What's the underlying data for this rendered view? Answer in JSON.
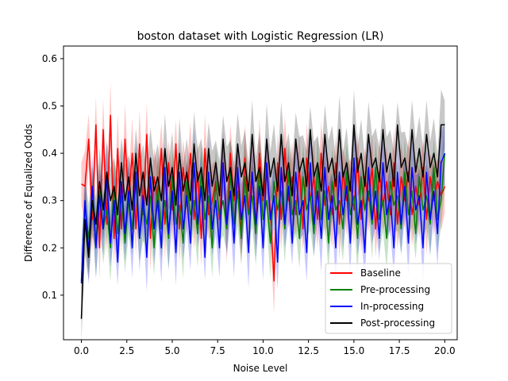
{
  "chart_data": {
    "type": "line",
    "title": "boston dataset with Logistic Regression (LR)",
    "xlabel": "Noise Level",
    "ylabel": "Difference of Equalized Odds",
    "xlim": [
      -0.985,
      20.685
    ],
    "ylim": [
      0.0058,
      0.6267
    ],
    "xticks": [
      0.0,
      2.5,
      5.0,
      7.5,
      10.0,
      12.5,
      15.0,
      17.5,
      20.0
    ],
    "xtick_labels": [
      "0.0",
      "2.5",
      "5.0",
      "7.5",
      "10.0",
      "12.5",
      "15.0",
      "17.5",
      "20.0"
    ],
    "yticks": [
      0.1,
      0.2,
      0.3,
      0.4,
      0.5,
      0.6
    ],
    "ytick_labels": [
      "0.1",
      "0.2",
      "0.3",
      "0.4",
      "0.5",
      "0.6"
    ],
    "x": [
      0.0,
      0.2,
      0.4,
      0.6,
      0.8,
      1.0,
      1.2,
      1.4,
      1.6,
      1.8,
      2.0,
      2.2,
      2.4,
      2.6,
      2.8,
      3.0,
      3.2,
      3.4,
      3.6,
      3.8,
      4.0,
      4.2,
      4.4,
      4.6,
      4.8,
      5.0,
      5.2,
      5.4,
      5.6,
      5.8,
      6.0,
      6.2,
      6.4,
      6.6,
      6.8,
      7.0,
      7.2,
      7.4,
      7.6,
      7.8,
      8.0,
      8.2,
      8.4,
      8.6,
      8.8,
      9.0,
      9.2,
      9.4,
      9.6,
      9.8,
      10.0,
      10.2,
      10.4,
      10.6,
      10.8,
      11.0,
      11.2,
      11.4,
      11.6,
      11.8,
      12.0,
      12.2,
      12.4,
      12.6,
      12.8,
      13.0,
      13.2,
      13.4,
      13.6,
      13.8,
      14.0,
      14.2,
      14.4,
      14.6,
      14.8,
      15.0,
      15.2,
      15.4,
      15.6,
      15.8,
      16.0,
      16.2,
      16.4,
      16.6,
      16.8,
      17.0,
      17.2,
      17.4,
      17.6,
      17.8,
      18.0,
      18.2,
      18.4,
      18.6,
      18.8,
      19.0,
      19.2,
      19.4,
      19.6,
      19.8,
      20.0
    ],
    "series": [
      {
        "name": "Baseline",
        "color": "#ff0000",
        "values": [
          0.335,
          0.33,
          0.43,
          0.26,
          0.46,
          0.2,
          0.45,
          0.25,
          0.48,
          0.22,
          0.41,
          0.24,
          0.43,
          0.3,
          0.4,
          0.24,
          0.42,
          0.27,
          0.44,
          0.22,
          0.35,
          0.3,
          0.41,
          0.25,
          0.38,
          0.28,
          0.42,
          0.24,
          0.37,
          0.3,
          0.4,
          0.26,
          0.36,
          0.22,
          0.41,
          0.27,
          0.3,
          0.34,
          0.26,
          0.38,
          0.24,
          0.4,
          0.3,
          0.35,
          0.23,
          0.39,
          0.28,
          0.36,
          0.25,
          0.4,
          0.3,
          0.36,
          0.28,
          0.13,
          0.38,
          0.26,
          0.41,
          0.3,
          0.35,
          0.27,
          0.37,
          0.24,
          0.39,
          0.3,
          0.35,
          0.26,
          0.4,
          0.29,
          0.33,
          0.27,
          0.38,
          0.25,
          0.36,
          0.3,
          0.34,
          0.28,
          0.39,
          0.26,
          0.35,
          0.3,
          0.37,
          0.24,
          0.36,
          0.29,
          0.34,
          0.27,
          0.38,
          0.25,
          0.35,
          0.3,
          0.36,
          0.27,
          0.33,
          0.29,
          0.37,
          0.26,
          0.35,
          0.3,
          0.34,
          0.31,
          0.33
        ]
      },
      {
        "name": "Pre-processing",
        "color": "#008000",
        "values": [
          0.13,
          0.29,
          0.22,
          0.3,
          0.21,
          0.32,
          0.24,
          0.28,
          0.2,
          0.33,
          0.23,
          0.31,
          0.21,
          0.3,
          0.24,
          0.34,
          0.22,
          0.29,
          0.25,
          0.31,
          0.2,
          0.33,
          0.24,
          0.3,
          0.22,
          0.35,
          0.25,
          0.29,
          0.21,
          0.34,
          0.27,
          0.3,
          0.23,
          0.36,
          0.26,
          0.31,
          0.2,
          0.34,
          0.27,
          0.3,
          0.24,
          0.36,
          0.25,
          0.32,
          0.22,
          0.35,
          0.27,
          0.31,
          0.23,
          0.37,
          0.26,
          0.3,
          0.21,
          0.34,
          0.28,
          0.32,
          0.24,
          0.36,
          0.27,
          0.3,
          0.22,
          0.35,
          0.28,
          0.31,
          0.23,
          0.37,
          0.26,
          0.32,
          0.21,
          0.34,
          0.28,
          0.3,
          0.24,
          0.36,
          0.27,
          0.31,
          0.22,
          0.35,
          0.28,
          0.32,
          0.25,
          0.37,
          0.26,
          0.3,
          0.22,
          0.34,
          0.29,
          0.31,
          0.24,
          0.36,
          0.27,
          0.32,
          0.23,
          0.35,
          0.28,
          0.31,
          0.25,
          0.37,
          0.26,
          0.3,
          0.4
        ]
      },
      {
        "name": "In-processing",
        "color": "#0000ff",
        "values": [
          0.125,
          0.3,
          0.19,
          0.33,
          0.2,
          0.31,
          0.24,
          0.35,
          0.21,
          0.3,
          0.17,
          0.34,
          0.23,
          0.32,
          0.2,
          0.36,
          0.22,
          0.31,
          0.18,
          0.35,
          0.24,
          0.3,
          0.2,
          0.37,
          0.23,
          0.32,
          0.19,
          0.36,
          0.24,
          0.31,
          0.21,
          0.38,
          0.25,
          0.33,
          0.18,
          0.36,
          0.24,
          0.3,
          0.2,
          0.38,
          0.25,
          0.32,
          0.21,
          0.37,
          0.26,
          0.31,
          0.19,
          0.36,
          0.25,
          0.33,
          0.2,
          0.38,
          0.26,
          0.31,
          0.17,
          0.37,
          0.25,
          0.33,
          0.21,
          0.36,
          0.27,
          0.3,
          0.19,
          0.38,
          0.25,
          0.32,
          0.22,
          0.37,
          0.26,
          0.31,
          0.2,
          0.36,
          0.27,
          0.33,
          0.21,
          0.39,
          0.25,
          0.3,
          0.19,
          0.37,
          0.26,
          0.32,
          0.22,
          0.38,
          0.27,
          0.31,
          0.2,
          0.36,
          0.25,
          0.33,
          0.21,
          0.37,
          0.28,
          0.31,
          0.2,
          0.36,
          0.26,
          0.32,
          0.23,
          0.38,
          0.4
        ]
      },
      {
        "name": "Post-processing",
        "color": "#000000",
        "values": [
          0.05,
          0.26,
          0.18,
          0.3,
          0.25,
          0.34,
          0.28,
          0.36,
          0.3,
          0.33,
          0.27,
          0.38,
          0.3,
          0.35,
          0.28,
          0.4,
          0.31,
          0.36,
          0.29,
          0.39,
          0.32,
          0.35,
          0.3,
          0.41,
          0.33,
          0.37,
          0.29,
          0.4,
          0.32,
          0.36,
          0.3,
          0.42,
          0.34,
          0.37,
          0.3,
          0.41,
          0.33,
          0.38,
          0.31,
          0.43,
          0.34,
          0.37,
          0.31,
          0.42,
          0.35,
          0.38,
          0.32,
          0.44,
          0.34,
          0.37,
          0.31,
          0.43,
          0.35,
          0.39,
          0.32,
          0.44,
          0.34,
          0.38,
          0.31,
          0.43,
          0.36,
          0.39,
          0.33,
          0.45,
          0.35,
          0.38,
          0.32,
          0.44,
          0.36,
          0.39,
          0.33,
          0.45,
          0.35,
          0.38,
          0.32,
          0.46,
          0.36,
          0.4,
          0.33,
          0.44,
          0.37,
          0.39,
          0.34,
          0.45,
          0.36,
          0.4,
          0.33,
          0.46,
          0.37,
          0.39,
          0.34,
          0.45,
          0.36,
          0.41,
          0.35,
          0.44,
          0.37,
          0.4,
          0.35,
          0.46,
          0.46
        ]
      }
    ],
    "legend_position": "lower-right"
  }
}
